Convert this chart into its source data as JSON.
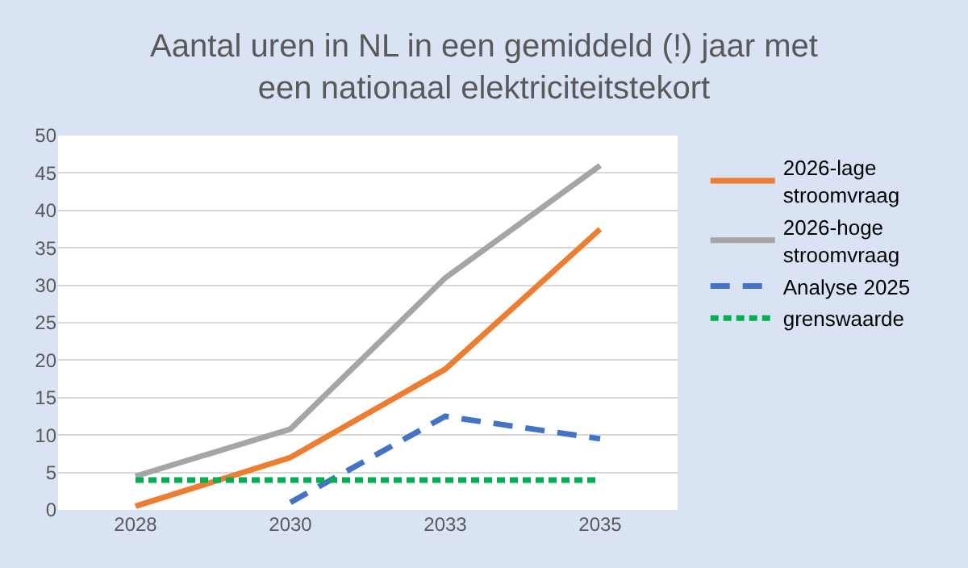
{
  "chart_data": {
    "type": "line",
    "title": "Aantal uren in NL in een gemiddeld (!) jaar met een nationaal elektriciteitstekort",
    "categories": [
      "2028",
      "2030",
      "2033",
      "2035"
    ],
    "series": [
      {
        "name": "2026-lage stroomvraag",
        "color": "#ed7d31",
        "values": [
          0.5,
          7,
          18.8,
          37.5
        ],
        "line_style": "solid"
      },
      {
        "name": "2026-hoge stroomvraag",
        "color": "#a5a5a5",
        "values": [
          4.5,
          10.8,
          31,
          46
        ],
        "line_style": "solid"
      },
      {
        "name": "Analyse 2025",
        "color": "#4472c4",
        "values": [
          null,
          1,
          12.5,
          9.5
        ],
        "line_style": "dashed"
      },
      {
        "name": "grenswaarde",
        "color": "#00b050",
        "values": [
          4,
          4,
          4,
          4
        ],
        "line_style": "dotted"
      }
    ],
    "ylim": [
      0,
      50
    ],
    "yticks": [
      0,
      5,
      10,
      15,
      20,
      25,
      30,
      35,
      40,
      45,
      50
    ],
    "grid": "y",
    "legend": "right",
    "marker": "none"
  }
}
